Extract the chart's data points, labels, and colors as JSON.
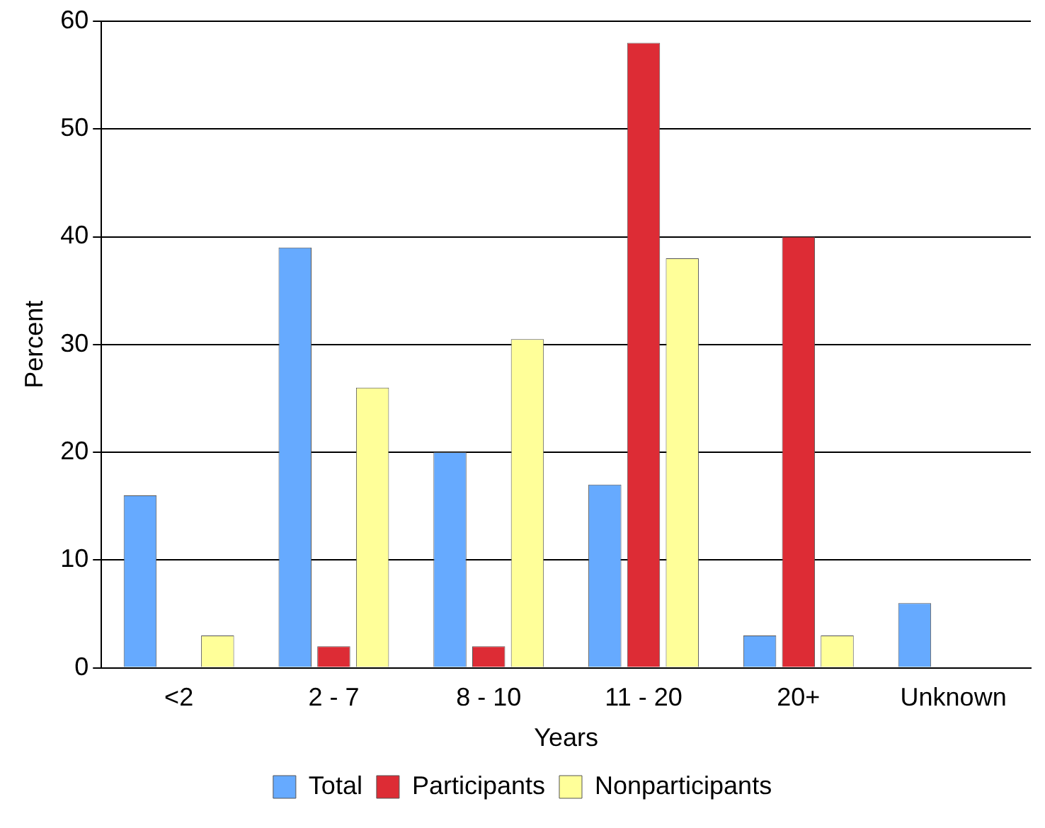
{
  "chart_data": {
    "type": "bar",
    "xlabel": "Years",
    "ylabel": "Percent",
    "categories": [
      "<2",
      "2 - 7",
      "8 - 10",
      "11 - 20",
      "20+",
      "Unknown"
    ],
    "series": [
      {
        "name": "Total",
        "color": "#66aaff",
        "values": [
          16,
          39,
          20,
          17,
          3,
          6
        ]
      },
      {
        "name": "Participants",
        "color": "#dd2c35",
        "values": [
          0,
          2,
          2,
          58,
          40,
          0
        ]
      },
      {
        "name": "Nonparticipants",
        "color": "#ffff99",
        "values": [
          3,
          26,
          30.5,
          38,
          3,
          0
        ]
      }
    ],
    "ylim": [
      0,
      60
    ],
    "yticks": [
      0,
      10,
      20,
      30,
      40,
      50,
      60
    ],
    "grid": "y",
    "legend": "bottom"
  }
}
